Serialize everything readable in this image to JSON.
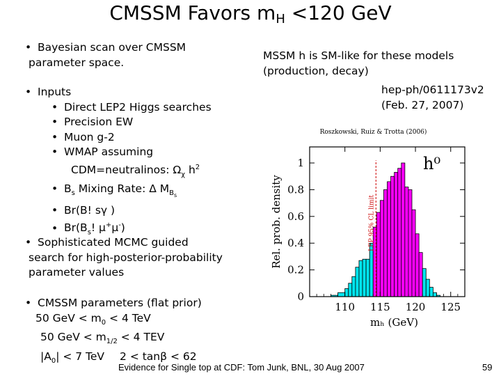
{
  "slide": {
    "title_pre": "CMSSM Favors m",
    "title_sub": "H",
    "title_post": " <120 GeV",
    "bayesian_line1": "Bayesian scan over CMSSM",
    "bayesian_line2": "parameter space.",
    "inputs_label": "Inputs",
    "input_items": [
      "Direct LEP2 Higgs searches",
      "Precision EW",
      "Muon g-2",
      "WMAP assuming"
    ],
    "wmap_cont": "CDM=neutralinos:  Ω",
    "wmap_sub": "χ",
    "wmap_tail": " h",
    "wmap_sup": "2",
    "bs_pre": "B",
    "bs_sub": "s",
    "bs_text": " Mixing Rate:  Δ M",
    "bs_sub2": "B",
    "bs_subsub": "s",
    "bsg": "Br(B! sγ )",
    "bsmumu_pre": "Br(B",
    "bsmumu_sub": "s",
    "bsmumu_text": "! μ",
    "mu_sup1": "+",
    "mu_mid": "μ",
    "mu_sup2": "-",
    "mu_close": ")",
    "mcmc_line1": "Sophisticated MCMC guided",
    "mcmc_line2": "search for high-posterior-probability",
    "mcmc_line3": "parameter values",
    "params_label": "CMSSM parameters (flat prior)",
    "p1_pre": "50 GeV < m",
    "p1_sub": "0",
    "p1_post": " < 4 TeV",
    "p2_pre": "50 GeV < m",
    "p2_sub": "1/2",
    "p2_post": " < 4 TEV",
    "p3_pre": "|A",
    "p3_sub": "0",
    "p3_post": "| < 7 TeV",
    "p3_tan": "2 < tanβ < 62",
    "sm_line1": "MSSM h is SM-like for these models",
    "sm_line2": "(production, decay)",
    "ref_line1": "hep-ph/0611173v2",
    "ref_line2": "(Feb. 27, 2007)",
    "footer": "Evidence for Single top at CDF: Tom Junk, BNL, 30 Aug 2007",
    "page_number": "59"
  },
  "chart_data": {
    "type": "histogram",
    "title": "Roszkowski, Ruiz & Trotta (2006)",
    "panel_label": "h⁰",
    "xlabel": "mₕ (GeV)",
    "ylabel": "Rel. prob. density",
    "xlim": [
      105,
      127
    ],
    "ylim": [
      0,
      1.12
    ],
    "xticks": [
      110,
      115,
      120,
      125
    ],
    "yticks": [
      0,
      0.2,
      0.4,
      0.6,
      0.8,
      1
    ],
    "ytick_labels": [
      "0",
      "0.2",
      "0.4",
      "0.6",
      "0.8",
      "1"
    ],
    "annotation": "LEP 95% CL limit",
    "annotation_x": 114.4,
    "colors": {
      "outer": "#00e5ee",
      "inner": "#ff00ff",
      "edge": "#000000"
    },
    "bins": [
      {
        "x0": 108.0,
        "x1": 109.0,
        "y": 0.01,
        "region": "outer"
      },
      {
        "x0": 109.0,
        "x1": 110.0,
        "y": 0.03,
        "region": "outer"
      },
      {
        "x0": 110.0,
        "x1": 110.5,
        "y": 0.06,
        "region": "outer"
      },
      {
        "x0": 110.5,
        "x1": 111.0,
        "y": 0.1,
        "region": "outer"
      },
      {
        "x0": 111.0,
        "x1": 111.5,
        "y": 0.15,
        "region": "outer"
      },
      {
        "x0": 111.5,
        "x1": 112.0,
        "y": 0.22,
        "region": "outer"
      },
      {
        "x0": 112.0,
        "x1": 112.5,
        "y": 0.27,
        "region": "outer"
      },
      {
        "x0": 112.5,
        "x1": 113.0,
        "y": 0.28,
        "region": "outer"
      },
      {
        "x0": 113.0,
        "x1": 113.5,
        "y": 0.28,
        "region": "outer"
      },
      {
        "x0": 113.5,
        "x1": 114.0,
        "y": 0.4,
        "region": "outer"
      },
      {
        "x0": 114.0,
        "x1": 114.5,
        "y": 0.52,
        "region": "inner"
      },
      {
        "x0": 114.5,
        "x1": 115.0,
        "y": 0.63,
        "region": "inner"
      },
      {
        "x0": 115.0,
        "x1": 115.5,
        "y": 0.72,
        "region": "inner"
      },
      {
        "x0": 115.5,
        "x1": 116.0,
        "y": 0.8,
        "region": "inner"
      },
      {
        "x0": 116.0,
        "x1": 116.5,
        "y": 0.86,
        "region": "inner"
      },
      {
        "x0": 116.5,
        "x1": 117.0,
        "y": 0.9,
        "region": "inner"
      },
      {
        "x0": 117.0,
        "x1": 117.5,
        "y": 0.93,
        "region": "inner"
      },
      {
        "x0": 117.5,
        "x1": 118.0,
        "y": 0.96,
        "region": "inner"
      },
      {
        "x0": 118.0,
        "x1": 118.5,
        "y": 1.0,
        "region": "inner"
      },
      {
        "x0": 118.5,
        "x1": 119.0,
        "y": 0.82,
        "region": "inner"
      },
      {
        "x0": 119.0,
        "x1": 119.5,
        "y": 0.8,
        "region": "inner"
      },
      {
        "x0": 119.5,
        "x1": 120.0,
        "y": 0.65,
        "region": "inner"
      },
      {
        "x0": 120.0,
        "x1": 120.5,
        "y": 0.47,
        "region": "inner"
      },
      {
        "x0": 120.5,
        "x1": 121.0,
        "y": 0.33,
        "region": "inner"
      },
      {
        "x0": 121.0,
        "x1": 121.5,
        "y": 0.21,
        "region": "outer"
      },
      {
        "x0": 121.5,
        "x1": 122.0,
        "y": 0.13,
        "region": "outer"
      },
      {
        "x0": 122.0,
        "x1": 122.5,
        "y": 0.07,
        "region": "outer"
      },
      {
        "x0": 122.5,
        "x1": 123.0,
        "y": 0.03,
        "region": "outer"
      },
      {
        "x0": 123.0,
        "x1": 123.5,
        "y": 0.01,
        "region": "outer"
      }
    ]
  }
}
